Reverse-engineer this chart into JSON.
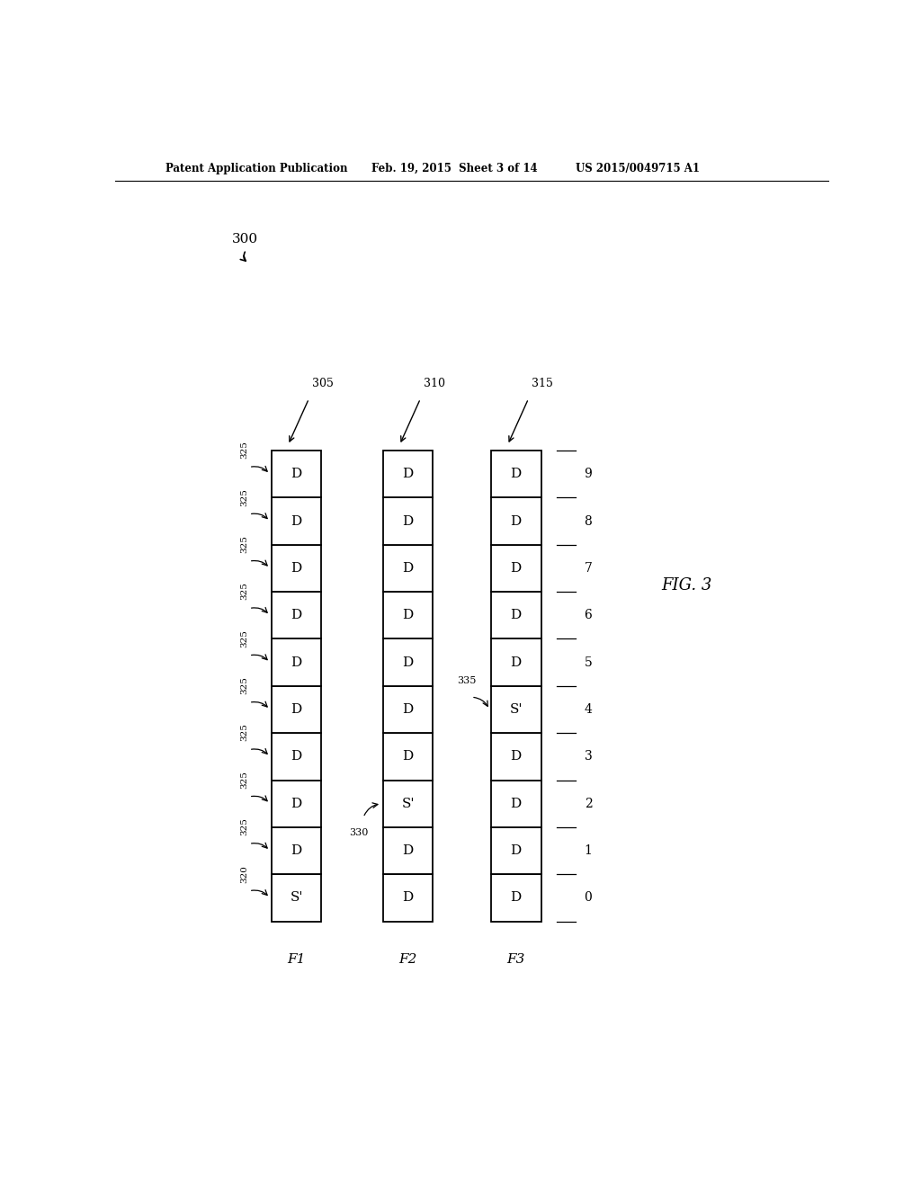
{
  "title_header": "Patent Application Publication",
  "date_header": "Feb. 19, 2015  Sheet 3 of 14",
  "patent_header": "US 2015/0049715 A1",
  "fig_label": "FIG. 3",
  "fig_number": "300",
  "columns": [
    {
      "label": "F1",
      "ref": "305",
      "cells": [
        "S'",
        "D",
        "D",
        "D",
        "D",
        "D",
        "D",
        "D",
        "D",
        "D"
      ],
      "special_cell_idx": 0,
      "special_cell_ref": "320",
      "show_normal_refs": true,
      "normal_cell_ref": "325"
    },
    {
      "label": "F2",
      "ref": "310",
      "cells": [
        "D",
        "D",
        "S'",
        "D",
        "D",
        "D",
        "D",
        "D",
        "D",
        "D"
      ],
      "special_cell_idx": 2,
      "special_cell_ref": "330",
      "show_normal_refs": false,
      "normal_cell_ref": null
    },
    {
      "label": "F3",
      "ref": "315",
      "cells": [
        "D",
        "D",
        "D",
        "D",
        "S'",
        "D",
        "D",
        "D",
        "D",
        "D"
      ],
      "special_cell_idx": 4,
      "special_cell_ref": "335",
      "show_normal_refs": false,
      "normal_cell_ref": null
    }
  ],
  "n_cells": 10,
  "background_color": "#ffffff",
  "line_color": "#000000",
  "text_color": "#000000"
}
